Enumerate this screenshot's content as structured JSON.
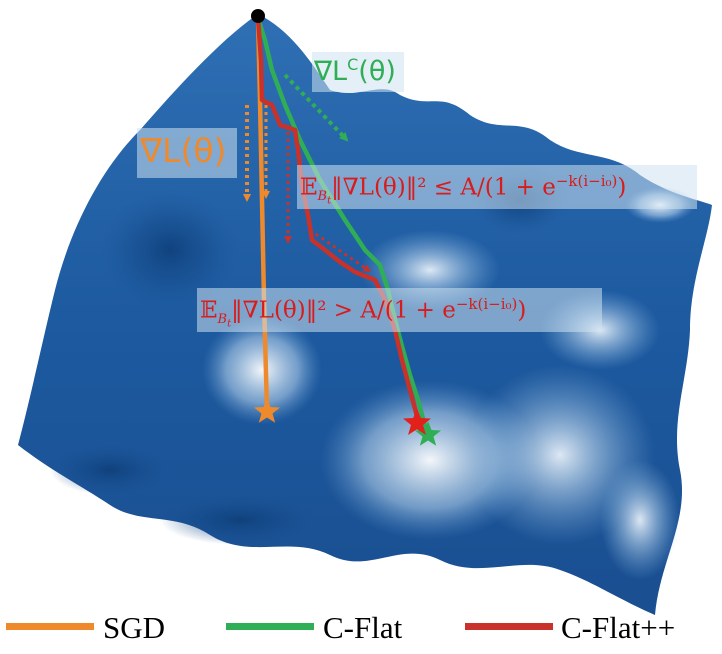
{
  "colors": {
    "sgd": "#ef8a2c",
    "cflat": "#2fae55",
    "cflatpp": "#c8322a",
    "surface_dark": "#1f5aa0",
    "surface_light": "#dfeef8"
  },
  "labels": {
    "grad_sgd": "∇L(θ)",
    "grad_cflat_main": "∇L",
    "grad_cflat_sup": "C",
    "grad_cflat_tail": "(θ)",
    "cond_le_prefix": "𝔼",
    "cond_le_sub": "B",
    "cond_le_subsub": "t",
    "cond_le_body": "‖∇L(θ)‖² ≤ A/(1 + e",
    "cond_le_exp": "−k(i−i₀)",
    "cond_le_tail": ")",
    "cond_gt_prefix": "𝔼",
    "cond_gt_sub": "B",
    "cond_gt_subsub": "t",
    "cond_gt_body": "‖∇L(θ)‖² > A/(1 + e",
    "cond_gt_exp": "−k(i−i₀)",
    "cond_gt_tail": ")"
  },
  "legend": [
    {
      "name": "SGD",
      "color": "#ef8a2c"
    },
    {
      "name": "C-Flat",
      "color": "#2fae55"
    },
    {
      "name": "C-Flat++",
      "color": "#c8322a"
    }
  ]
}
